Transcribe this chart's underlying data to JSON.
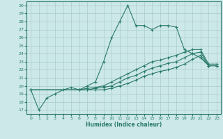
{
  "xlabel": "Humidex (Indice chaleur)",
  "bg_color": "#cce8e8",
  "line_color": "#2a7a6a",
  "grid_color": "#aacccc",
  "xlim": [
    -0.5,
    23.5
  ],
  "ylim": [
    16.5,
    30.5
  ],
  "yticks": [
    17,
    18,
    19,
    20,
    21,
    22,
    23,
    24,
    25,
    26,
    27,
    28,
    29,
    30
  ],
  "xticks": [
    0,
    1,
    2,
    3,
    4,
    5,
    6,
    7,
    8,
    9,
    10,
    11,
    12,
    13,
    14,
    15,
    16,
    17,
    18,
    19,
    20,
    21,
    22,
    23
  ],
  "line1_x": [
    0,
    1,
    2,
    3,
    4,
    5,
    6,
    7,
    8,
    9,
    10,
    11,
    12,
    13,
    14,
    15,
    16,
    17,
    18,
    19,
    20,
    21,
    22,
    23
  ],
  "line1_y": [
    19.5,
    17.0,
    18.5,
    19.0,
    19.5,
    19.8,
    19.5,
    20.0,
    20.5,
    23.0,
    26.0,
    28.0,
    30.0,
    27.5,
    27.5,
    27.0,
    27.5,
    27.5,
    27.3,
    24.5,
    24.0,
    23.5,
    22.5,
    22.5
  ],
  "line2_x": [
    0,
    6,
    7,
    8,
    9,
    10,
    11,
    12,
    13,
    14,
    15,
    16,
    17,
    18,
    19,
    20,
    21,
    22,
    23
  ],
  "line2_y": [
    19.5,
    19.5,
    19.7,
    19.8,
    20.0,
    20.5,
    21.0,
    21.5,
    22.0,
    22.5,
    23.0,
    23.2,
    23.5,
    23.8,
    24.2,
    24.5,
    24.5,
    22.7,
    22.7
  ],
  "line3_x": [
    0,
    6,
    7,
    8,
    9,
    10,
    11,
    12,
    13,
    14,
    15,
    16,
    17,
    18,
    19,
    20,
    21,
    22,
    23
  ],
  "line3_y": [
    19.5,
    19.5,
    19.5,
    19.7,
    19.8,
    20.0,
    20.5,
    21.0,
    21.3,
    21.8,
    22.2,
    22.5,
    22.8,
    23.0,
    23.5,
    24.0,
    24.2,
    22.5,
    22.5
  ],
  "line4_x": [
    0,
    6,
    7,
    8,
    9,
    10,
    11,
    12,
    13,
    14,
    15,
    16,
    17,
    18,
    19,
    20,
    21,
    22,
    23
  ],
  "line4_y": [
    19.5,
    19.5,
    19.5,
    19.5,
    19.5,
    19.7,
    20.0,
    20.3,
    20.7,
    21.2,
    21.5,
    21.8,
    22.0,
    22.3,
    22.7,
    23.3,
    23.8,
    22.5,
    22.5
  ]
}
